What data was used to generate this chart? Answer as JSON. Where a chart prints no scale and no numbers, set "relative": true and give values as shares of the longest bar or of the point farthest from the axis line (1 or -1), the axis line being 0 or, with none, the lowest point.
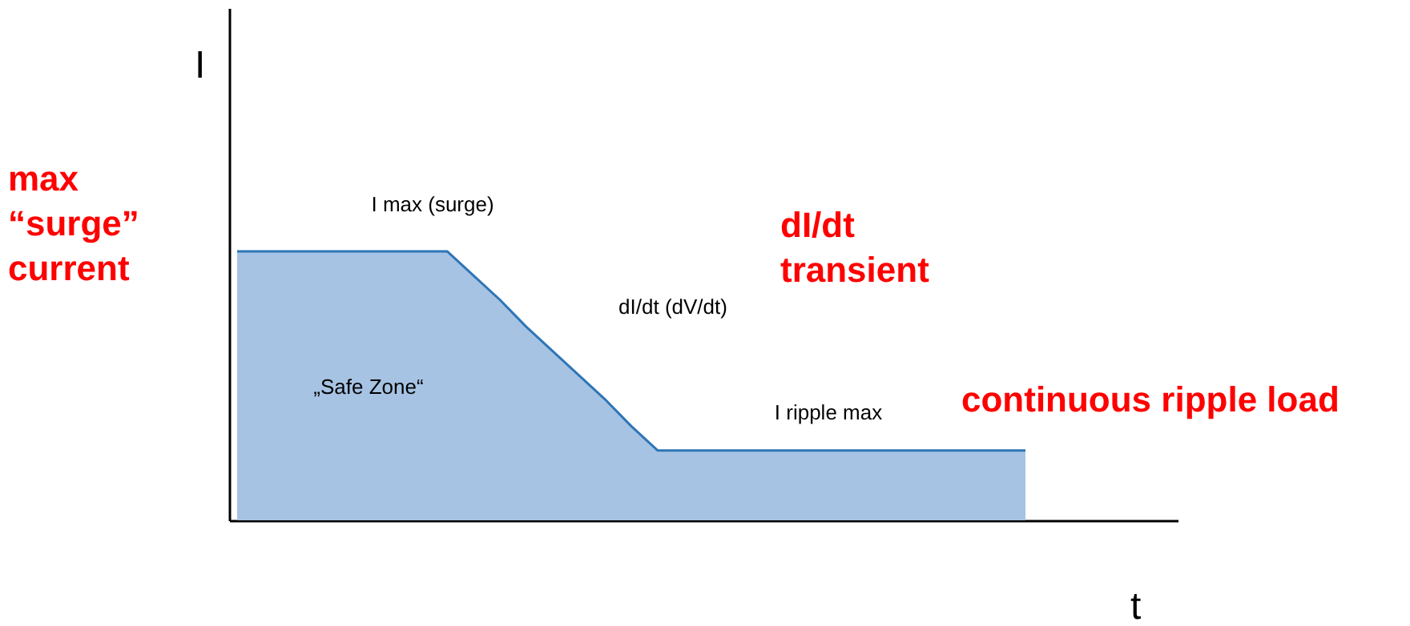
{
  "chart_data": {
    "type": "area",
    "relative": true,
    "xlabel": "t",
    "ylabel": "I",
    "categories": [
      null,
      null,
      null,
      null,
      null,
      null,
      null,
      null,
      null,
      null,
      null,
      null,
      null,
      null,
      null,
      null,
      null,
      null,
      null,
      null,
      null,
      null,
      null,
      null,
      null,
      null,
      null,
      null,
      null,
      null,
      null
    ],
    "series": [
      {
        "color": "#a6c3e3",
        "values": [
          1,
          1,
          1,
          1,
          1,
          1,
          1,
          1,
          1,
          0.91,
          0.82,
          0.72,
          0.63,
          0.54,
          0.45,
          0.35,
          0.26,
          0.26,
          0.26,
          0.26,
          0.26,
          0.26,
          0.26,
          0.26,
          0.26,
          0.26,
          0.26,
          0.26,
          0.26,
          0.26,
          0.26
        ]
      }
    ],
    "annotations": [
      "I max (surge)",
      "dI/dt   (dV/dt)",
      "„Safe Zone“",
      "I ripple max",
      "max “surge” current",
      "dI/dt transient",
      "continuous ripple load"
    ]
  }
}
